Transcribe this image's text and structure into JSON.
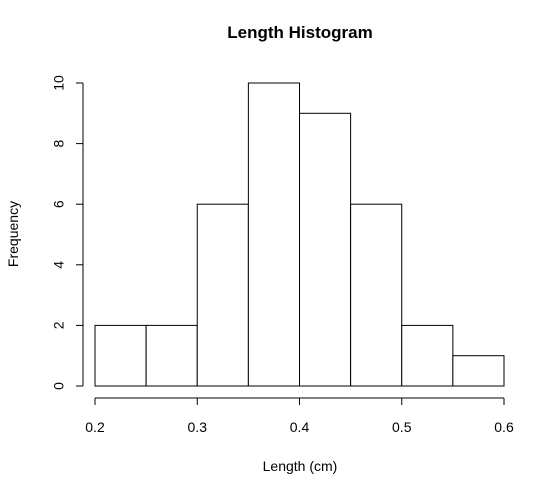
{
  "chart_data": {
    "type": "bar",
    "title": "Length Histogram",
    "xlabel": "Length (cm)",
    "ylabel": "Frequency",
    "bins": [
      {
        "start": 0.2,
        "end": 0.25,
        "count": 2
      },
      {
        "start": 0.25,
        "end": 0.3,
        "count": 2
      },
      {
        "start": 0.3,
        "end": 0.35,
        "count": 6
      },
      {
        "start": 0.35,
        "end": 0.4,
        "count": 10
      },
      {
        "start": 0.4,
        "end": 0.45,
        "count": 9
      },
      {
        "start": 0.45,
        "end": 0.5,
        "count": 6
      },
      {
        "start": 0.5,
        "end": 0.55,
        "count": 2
      },
      {
        "start": 0.55,
        "end": 0.6,
        "count": 1
      }
    ],
    "xlim": [
      0.2,
      0.6
    ],
    "ylim": [
      0,
      10
    ],
    "x_ticks": [
      "0.2",
      "0.3",
      "0.4",
      "0.5",
      "0.6"
    ],
    "y_ticks": [
      "0",
      "2",
      "4",
      "6",
      "8",
      "10"
    ],
    "grid": false,
    "legend": "none"
  }
}
